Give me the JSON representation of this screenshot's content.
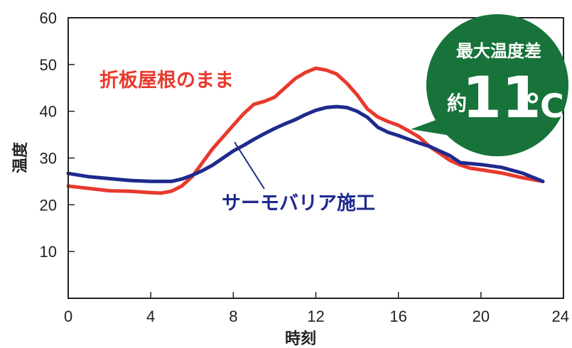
{
  "chart_data": {
    "type": "line",
    "xlabel": "時刻",
    "ylabel": "温度",
    "xlim": [
      0,
      24
    ],
    "ylim": [
      0,
      60
    ],
    "xticks": [
      0,
      4,
      8,
      12,
      16,
      20,
      24
    ],
    "yticks": [
      10,
      20,
      30,
      40,
      50,
      60
    ],
    "grid": false,
    "series": [
      {
        "name": "折板屋根のまま",
        "color": "#e8392d",
        "points": [
          [
            0,
            24
          ],
          [
            1,
            23.5
          ],
          [
            2,
            23
          ],
          [
            3,
            22.9
          ],
          [
            4,
            22.6
          ],
          [
            4.5,
            22.5
          ],
          [
            5,
            22.9
          ],
          [
            5.5,
            24
          ],
          [
            6,
            26
          ],
          [
            6.5,
            29
          ],
          [
            7,
            32
          ],
          [
            7.5,
            34.5
          ],
          [
            8,
            37
          ],
          [
            8.5,
            39.5
          ],
          [
            9,
            41.5
          ],
          [
            9.5,
            42.1
          ],
          [
            10,
            43
          ],
          [
            10.5,
            45
          ],
          [
            11,
            47
          ],
          [
            11.5,
            48.3
          ],
          [
            12,
            49.2
          ],
          [
            12.5,
            48.8
          ],
          [
            13,
            48
          ],
          [
            13.5,
            46
          ],
          [
            14,
            43.5
          ],
          [
            14.5,
            40.5
          ],
          [
            15,
            38.8
          ],
          [
            15.5,
            37.8
          ],
          [
            16,
            37
          ],
          [
            16.5,
            35.8
          ],
          [
            17,
            34.5
          ],
          [
            17.5,
            32.5
          ],
          [
            18,
            31
          ],
          [
            18.5,
            29.5
          ],
          [
            19,
            28.5
          ],
          [
            19.5,
            27.8
          ],
          [
            20,
            27.5
          ],
          [
            21,
            26.8
          ],
          [
            22,
            25.8
          ],
          [
            23,
            25
          ]
        ]
      },
      {
        "name": "サーモバリア施工",
        "color": "#1f2a8c",
        "points": [
          [
            0,
            26.7
          ],
          [
            1,
            26
          ],
          [
            2,
            25.6
          ],
          [
            3,
            25.2
          ],
          [
            4,
            25
          ],
          [
            4.5,
            25
          ],
          [
            5,
            25
          ],
          [
            5.5,
            25.5
          ],
          [
            6,
            26.3
          ],
          [
            6.5,
            27.3
          ],
          [
            7,
            28.5
          ],
          [
            7.5,
            30
          ],
          [
            8,
            31.5
          ],
          [
            8.5,
            32.7
          ],
          [
            9,
            34
          ],
          [
            9.5,
            35.2
          ],
          [
            10,
            36.3
          ],
          [
            10.5,
            37.3
          ],
          [
            11,
            38.2
          ],
          [
            11.5,
            39.3
          ],
          [
            12,
            40.2
          ],
          [
            12.5,
            40.8
          ],
          [
            13,
            41
          ],
          [
            13.5,
            40.8
          ],
          [
            14,
            40
          ],
          [
            14.5,
            38.7
          ],
          [
            15,
            36.6
          ],
          [
            15.5,
            35.5
          ],
          [
            16,
            34.8
          ],
          [
            16.5,
            34
          ],
          [
            17,
            33.2
          ],
          [
            17.5,
            32.5
          ],
          [
            18,
            31.5
          ],
          [
            18.5,
            30.5
          ],
          [
            19,
            29
          ],
          [
            19.5,
            28.8
          ],
          [
            20,
            28.6
          ],
          [
            21,
            28
          ],
          [
            22,
            26.8
          ],
          [
            23,
            25
          ]
        ]
      }
    ],
    "annotation": {
      "title": "最大温度差",
      "prefix": "約",
      "value": "11",
      "unit": "℃",
      "color": "#17733a"
    }
  }
}
